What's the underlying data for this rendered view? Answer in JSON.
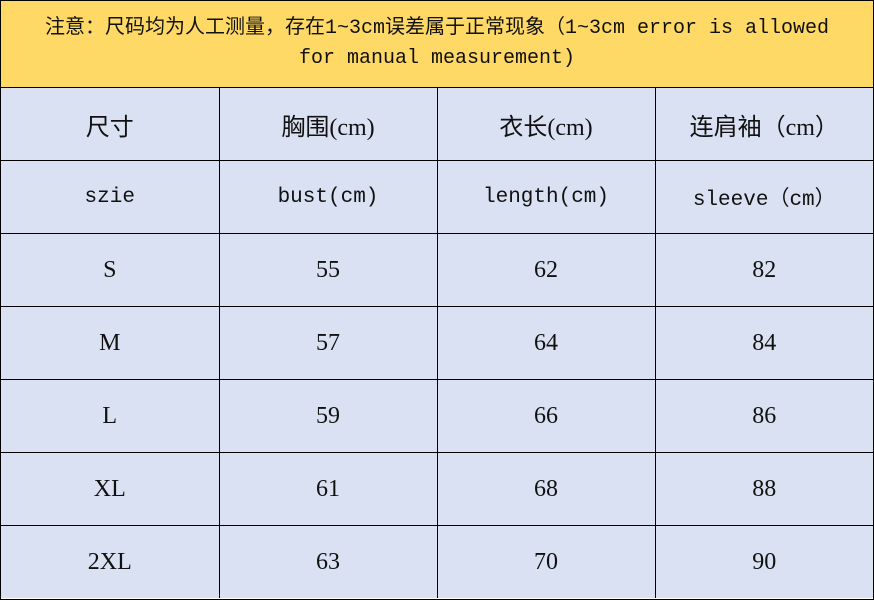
{
  "note": "注意：尺码均为人工测量，存在1~3cm误差属于正常现象（1~3cm error is allowed for manual measurement)",
  "colors": {
    "note_bg": "#FFD966",
    "cell_bg": "#D9E1F2"
  },
  "header_cn": [
    "尺寸",
    "胸围(cm)",
    "衣长(cm)",
    "连肩袖（cm）"
  ],
  "header_en": [
    "szie",
    "bust(cm)",
    "length(cm)",
    "sleeve（cm）"
  ],
  "rows": [
    [
      "S",
      "55",
      "62",
      "82"
    ],
    [
      "M",
      "57",
      "64",
      "84"
    ],
    [
      "L",
      "59",
      "66",
      "86"
    ],
    [
      "XL",
      "61",
      "68",
      "88"
    ],
    [
      "2XL",
      "63",
      "70",
      "90"
    ]
  ]
}
